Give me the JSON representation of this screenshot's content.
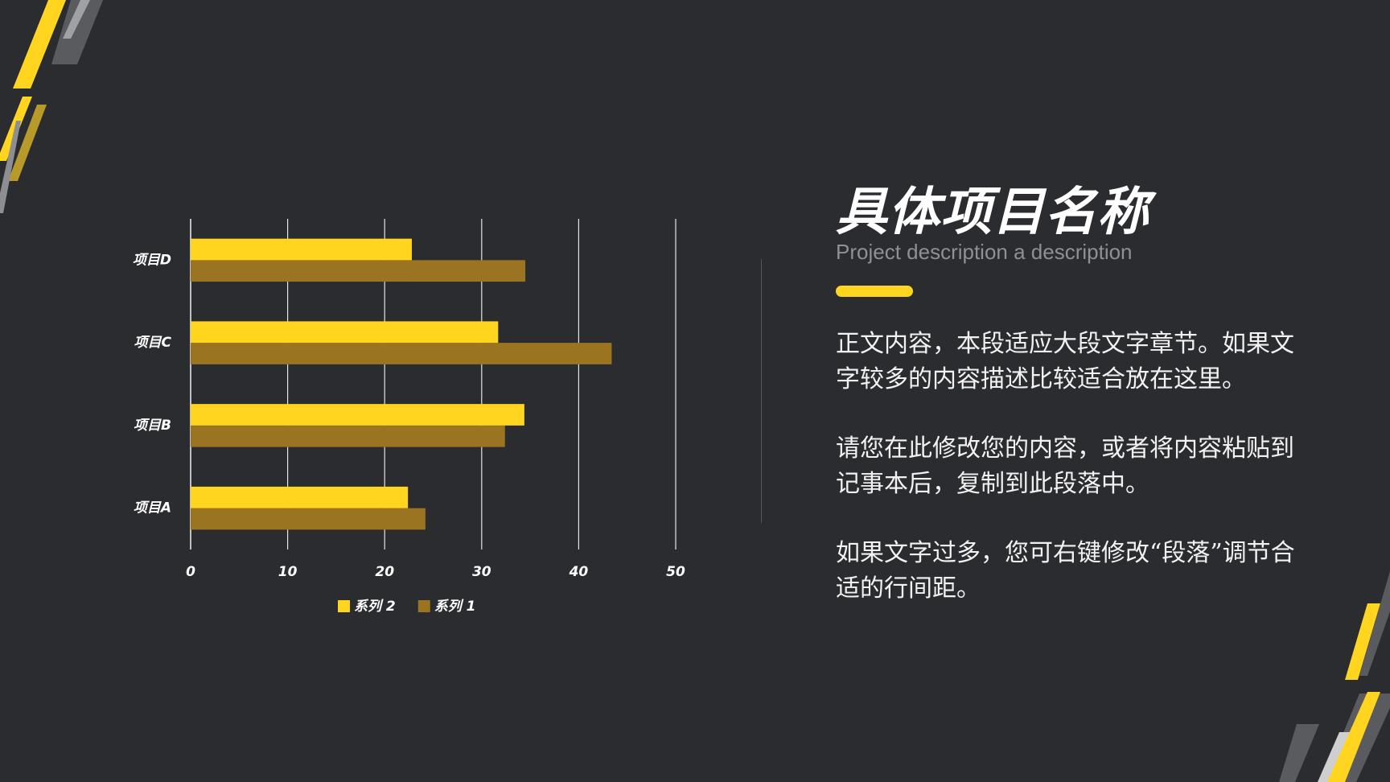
{
  "chart_data": {
    "type": "bar",
    "orientation": "horizontal",
    "categories": [
      "项目A",
      "项目B",
      "项目C",
      "项目D"
    ],
    "series": [
      {
        "name": "系列 1",
        "color": "#9a7420",
        "values": [
          24.2,
          32.4,
          43.4,
          34.5
        ]
      },
      {
        "name": "系列 2",
        "color": "#ffd51f",
        "values": [
          22.4,
          34.4,
          31.7,
          22.8
        ]
      }
    ],
    "xlim": [
      0,
      50
    ],
    "xticks": [
      0,
      10,
      20,
      30,
      40,
      50
    ],
    "grid": true,
    "legend": "bottom"
  },
  "text": {
    "title": "具体项目名称",
    "subtitle": "Project description a description",
    "paragraphs": [
      "正文内容，本段适应大段文字章节。如果文字较多的内容描述比较适合放在这里。",
      "请您在此修改您的内容，或者将内容粘贴到记事本后，复制到此段落中。",
      "如果文字过多，您可右键修改“段落”调节合适的行间距。"
    ]
  }
}
